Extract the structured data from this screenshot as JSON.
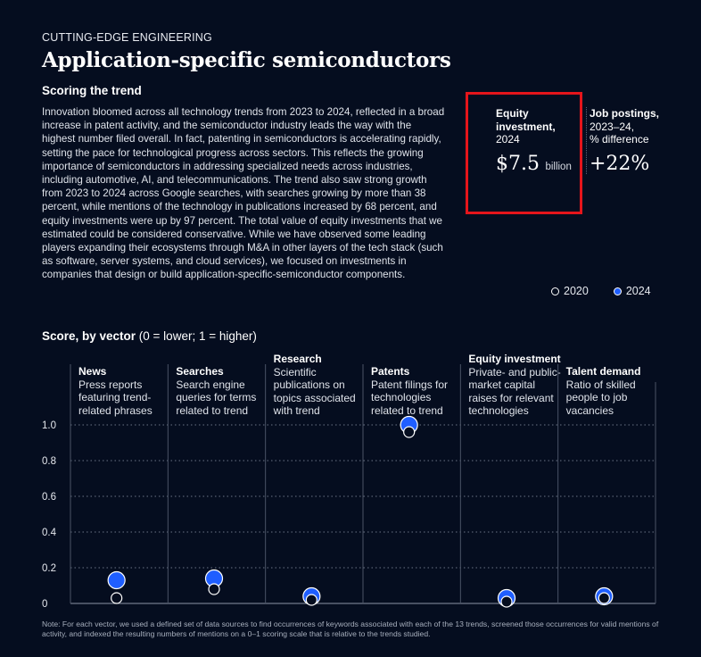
{
  "eyebrow": "CUTTING-EDGE ENGINEERING",
  "title": "Application-specific semiconductors",
  "section_heading": "Scoring the trend",
  "body": "Innovation bloomed across all technology trends from 2023 to 2024, reflected in a broad increase in patent activity, and the semiconductor industry leads the way with the highest number filed overall. In fact, patenting in semiconductors is accelerating rapidly, setting the pace for technological progress across sectors. This reflects the growing importance of semiconductors in addressing specialized needs across industries, including automotive, AI, and telecommunications. The trend also saw strong growth from 2023 to 2024 across Google searches, with searches growing by more than 38 percent, while mentions of the technology in publications increased by 68 percent, and equity investments were up by 97 percent. The total value of equity investments that we estimated could be considered conservative. While we have observed some leading players expanding their ecosystems through M&A in other layers of the tech stack (such as software, server systems, and cloud services), we focused on investments in companies that design or build application-specific-semiconductor components.",
  "kpis": {
    "equity": {
      "label_bold": "Equity investment,",
      "label_year": "2024",
      "value": "$7.5",
      "unit": "billion"
    },
    "jobs": {
      "label_bold": "Job postings,",
      "label_range": "2023–24,",
      "label_sub": "% difference",
      "value": "+22%"
    }
  },
  "legend": {
    "y2020": "2020",
    "y2024": "2024"
  },
  "chart_title": {
    "bold": "Score, by vector",
    "rest": " (0 = lower; 1 = higher)"
  },
  "note": "Note: For each vector, we used a defined set of data sources to find occurrences of keywords associated with each of the 13 trends, screened those occurrences for valid mentions of activity, and indexed the resulting numbers of mentions on a 0–1 scoring scale that is relative to the trends studied.",
  "colors": {
    "background": "#050d1f",
    "accent": "#1f5eff",
    "highlight_box": "#e5151b"
  },
  "chart_data": {
    "type": "scatter",
    "title": "Score, by vector",
    "ylabel": "(0 = lower; 1 = higher)",
    "ylim": [
      0,
      1
    ],
    "yticks": [
      "0",
      "0.2",
      "0.4",
      "0.6",
      "0.8",
      "1.0"
    ],
    "ytick_values": [
      0,
      0.2,
      0.4,
      0.6,
      0.8,
      1.0
    ],
    "categories": [
      {
        "name": "News",
        "description": "Press reports featuring trend-related phrases"
      },
      {
        "name": "Searches",
        "description": "Search engine queries for terms related to trend"
      },
      {
        "name": "Research",
        "description": "Scientific publications on topics associated with trend"
      },
      {
        "name": "Patents",
        "description": "Patent filings for technologies related to trend"
      },
      {
        "name": "Equity investment",
        "description": "Private- and public-market capital raises for relevant technologies"
      },
      {
        "name": "Talent demand",
        "description": "Ratio of skilled people to job vacancies"
      }
    ],
    "series": [
      {
        "name": "2020",
        "values": [
          0.03,
          0.08,
          0.02,
          0.96,
          0.01,
          0.03
        ]
      },
      {
        "name": "2024",
        "values": [
          0.13,
          0.14,
          0.04,
          1.0,
          0.03,
          0.04
        ]
      }
    ]
  }
}
